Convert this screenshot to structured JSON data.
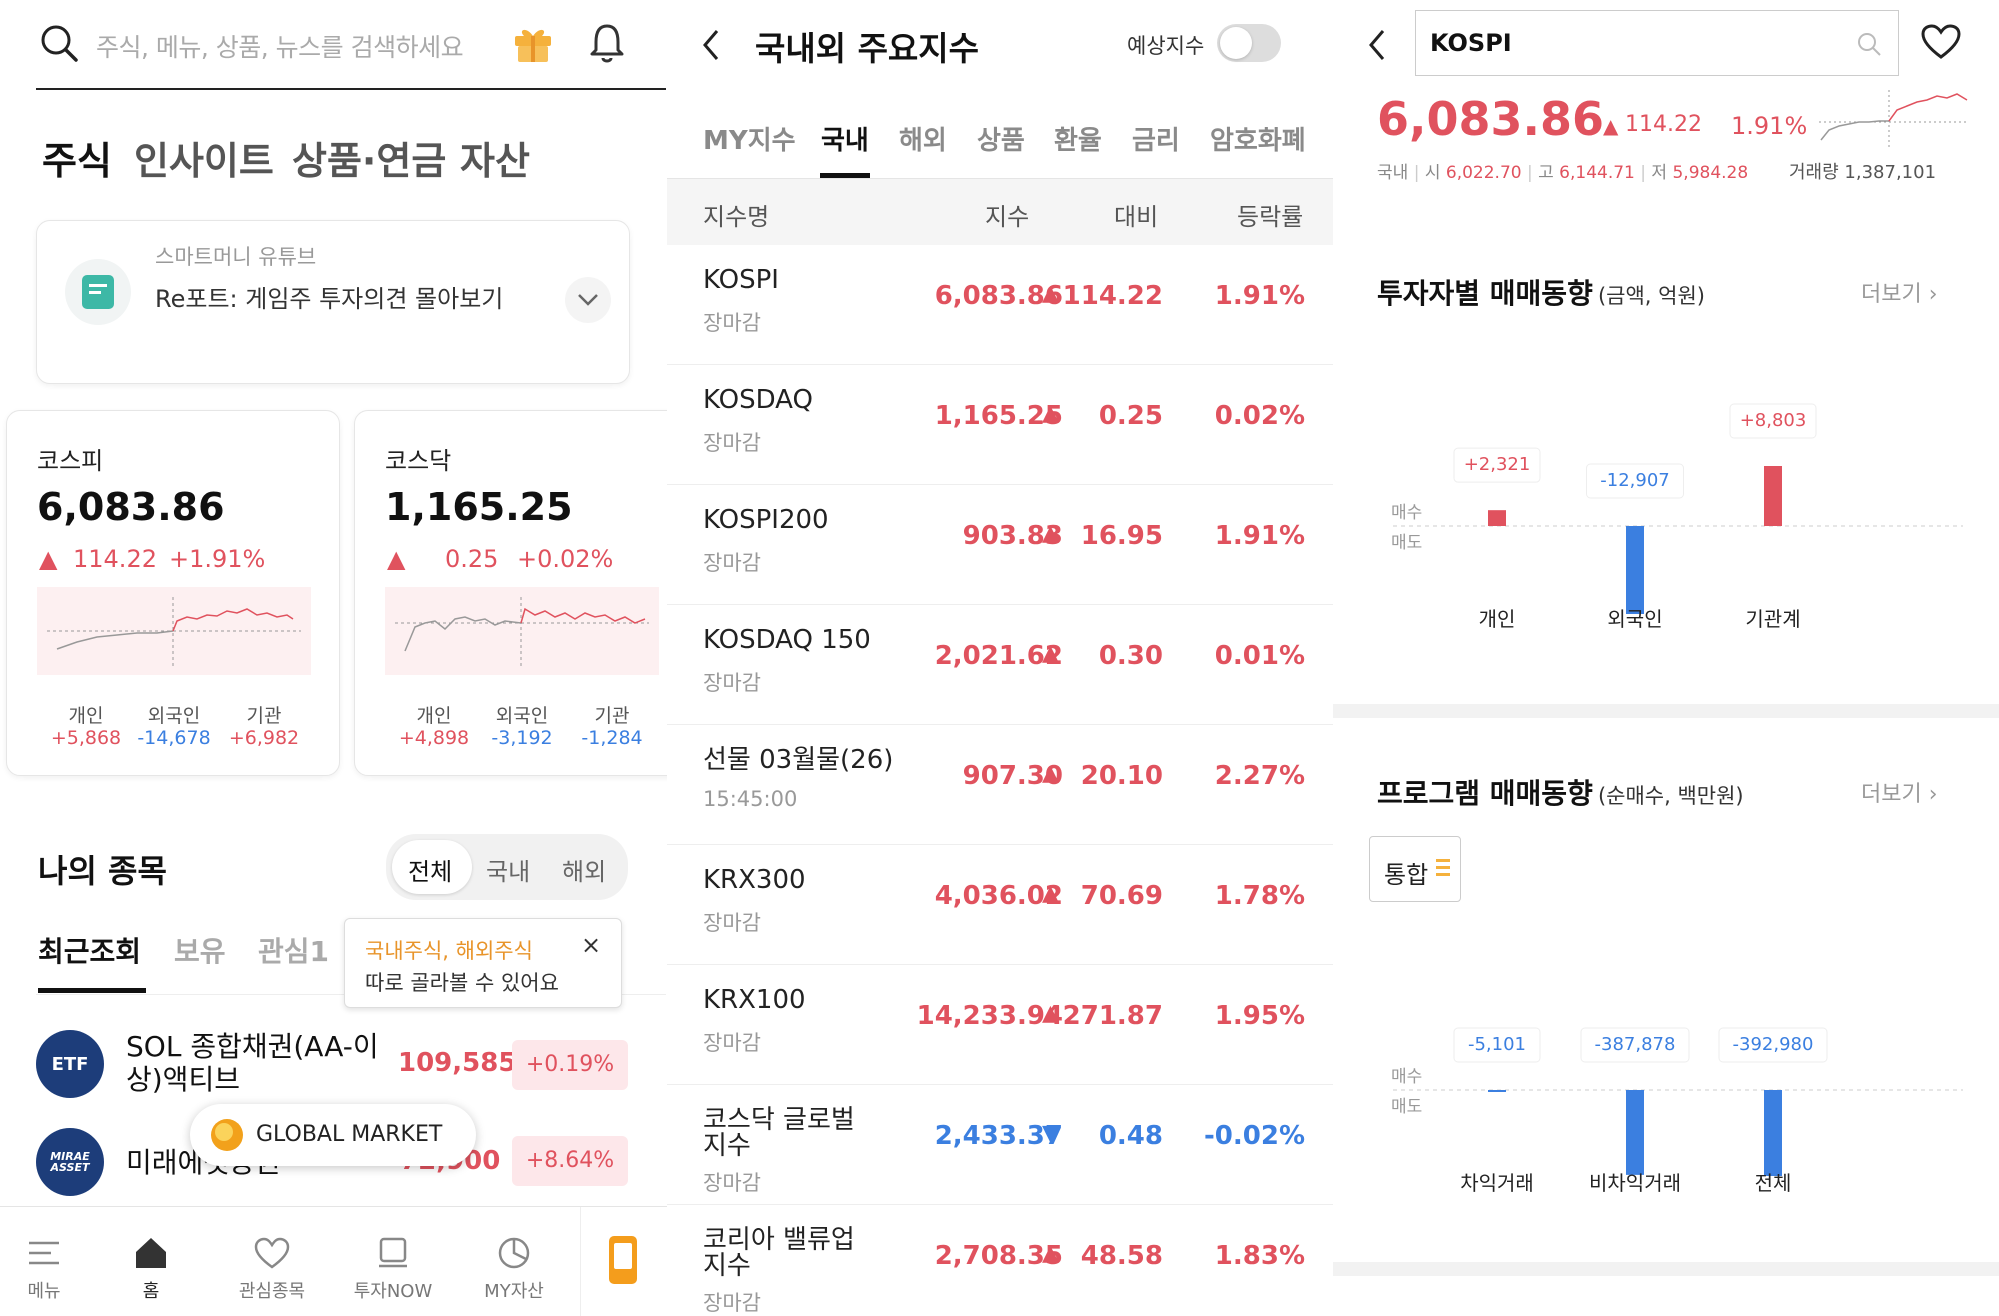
{
  "home": {
    "search_placeholder": "주식, 메뉴, 상품, 뉴스를 검색하세요",
    "tabs": [
      "주식",
      "인사이트",
      "상품·연금",
      "자산"
    ],
    "banner": {
      "caption": "스마트머니 유튜브",
      "title": "Re포트: 게임주 투자의견 몰아보기"
    },
    "index_cards": [
      {
        "name": "코스피",
        "value": "6,083.86",
        "arrow": "▲",
        "change": "114.22",
        "pct": "+1.91%",
        "investors": [
          {
            "label": "개인",
            "value": "+5,868"
          },
          {
            "label": "외국인",
            "value": "-14,678"
          },
          {
            "label": "기관",
            "value": "+6,982"
          }
        ]
      },
      {
        "name": "코스닥",
        "value": "1,165.25",
        "arrow": "▲",
        "change": "0.25",
        "pct": "+0.02%",
        "investors": [
          {
            "label": "개인",
            "value": "+4,898"
          },
          {
            "label": "외국인",
            "value": "-3,192"
          },
          {
            "label": "기관",
            "value": "-1,284"
          }
        ]
      }
    ],
    "my_stocks": {
      "title": "나의 종목",
      "segments": [
        "전체",
        "국내",
        "해외"
      ],
      "subtabs": [
        "최근조회",
        "보유",
        "관심1"
      ],
      "tooltip": {
        "highlight": "국내주식, 해외주식",
        "text": "따로 골라볼 수 있어요",
        "close": "×"
      },
      "items": [
        {
          "logo": "ETF",
          "name_line1": "SOL 종합채권(AA-이",
          "name_line2": "상)액티브",
          "price": "109,585",
          "change": "+0.19%"
        },
        {
          "logo": "MIRAE ASSET",
          "name_line1": "미래에셋증권",
          "name_line2": "",
          "price": "72,900",
          "change": "+8.64%"
        }
      ],
      "global_market": "GLOBAL MARKET"
    },
    "bottom_nav": [
      "메뉴",
      "홈",
      "관심종목",
      "투자NOW",
      "MY자산"
    ]
  },
  "indices": {
    "title": "국내외 주요지수",
    "toggle_label": "예상지수",
    "categories": [
      "MY지수",
      "국내",
      "해외",
      "상품",
      "환율",
      "금리",
      "암호화폐"
    ],
    "active_category": "국내",
    "columns": [
      "지수명",
      "지수",
      "대비",
      "등락률"
    ],
    "rows": [
      {
        "name": "KOSPI",
        "name2": "",
        "sub": "장마감",
        "value": "6,083.86",
        "arrow": "▲",
        "change": "114.22",
        "pct": "1.91%",
        "dir": "up"
      },
      {
        "name": "KOSDAQ",
        "name2": "",
        "sub": "장마감",
        "value": "1,165.25",
        "arrow": "▲",
        "change": "0.25",
        "pct": "0.02%",
        "dir": "up"
      },
      {
        "name": "KOSPI200",
        "name2": "",
        "sub": "장마감",
        "value": "903.83",
        "arrow": "▲",
        "change": "16.95",
        "pct": "1.91%",
        "dir": "up"
      },
      {
        "name": "KOSDAQ 150",
        "name2": "",
        "sub": "장마감",
        "value": "2,021.62",
        "arrow": "▲",
        "change": "0.30",
        "pct": "0.01%",
        "dir": "up"
      },
      {
        "name": "선물 03월물(26)",
        "name2": "",
        "sub": "15:45:00",
        "value": "907.30",
        "arrow": "▲",
        "change": "20.10",
        "pct": "2.27%",
        "dir": "up"
      },
      {
        "name": "KRX300",
        "name2": "",
        "sub": "장마감",
        "value": "4,036.02",
        "arrow": "▲",
        "change": "70.69",
        "pct": "1.78%",
        "dir": "up"
      },
      {
        "name": "KRX100",
        "name2": "",
        "sub": "장마감",
        "value": "14,233.94",
        "arrow": "▲",
        "change": "271.87",
        "pct": "1.95%",
        "dir": "up"
      },
      {
        "name": "코스닥 글로벌",
        "name2": "지수",
        "sub": "장마감",
        "value": "2,433.37",
        "arrow": "▼",
        "change": "0.48",
        "pct": "-0.02%",
        "dir": "down"
      },
      {
        "name": "코리아 밸류업",
        "name2": "지수",
        "sub": "장마감",
        "value": "2,708.35",
        "arrow": "▲",
        "change": "48.58",
        "pct": "1.83%",
        "dir": "up"
      }
    ]
  },
  "kospi": {
    "search_value": "KOSPI",
    "price": "6,083.86",
    "arrow": "▲",
    "change": "114.22",
    "pct": "1.91%",
    "market": "국내",
    "open_label": "시",
    "open": "6,022.70",
    "high_label": "고",
    "high": "6,144.71",
    "low_label": "저",
    "low": "5,984.28",
    "volume_label": "거래량",
    "volume": "1,387,101",
    "investor_section": {
      "title": "투자자별 매매동향",
      "unit": "(금액, 억원)",
      "more": "더보기"
    },
    "program_section": {
      "title": "프로그램 매매동향",
      "unit": "(순매수, 백만원)",
      "more": "더보기",
      "filter": "통합"
    },
    "buy_label": "매수",
    "sell_label": "매도",
    "colors": {
      "up": "#e0525e",
      "down": "#3b7fe0"
    }
  },
  "chart_data": [
    {
      "type": "bar",
      "title": "투자자별 매매동향",
      "unit": "억원",
      "categories": [
        "개인",
        "외국인",
        "기관계"
      ],
      "values": [
        2321,
        -12907,
        8803
      ],
      "labels": [
        "+2,321",
        "-12,907",
        "+8,803"
      ]
    },
    {
      "type": "bar",
      "title": "프로그램 매매동향",
      "unit": "백만원",
      "categories": [
        "차익거래",
        "비차익거래",
        "전체"
      ],
      "values": [
        -5101,
        -387878,
        -392980
      ],
      "labels": [
        "-5,101",
        "-387,878",
        "-392,980"
      ]
    }
  ]
}
